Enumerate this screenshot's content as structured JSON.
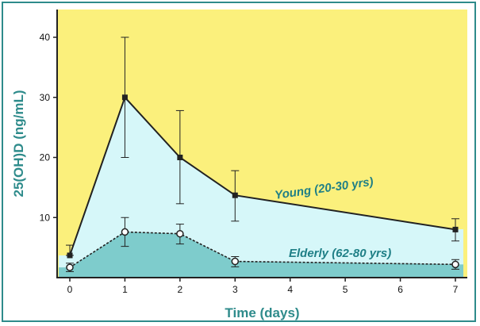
{
  "colors": {
    "frame": "#2e8b8b",
    "background_fill": "#fbf07c",
    "young_fill": "#d6f7f9",
    "elderly_fill": "#7ecccc",
    "line": "#222222",
    "text_accent": "#1f7f86"
  },
  "chart_data": {
    "type": "line",
    "title": "",
    "xlabel": "Time (days)",
    "ylabel": "25(OH)D (ng/mL)",
    "xlim": [
      0,
      7
    ],
    "ylim": [
      0,
      42
    ],
    "xticks": [
      0,
      1,
      2,
      3,
      4,
      5,
      6,
      7
    ],
    "yticks": [
      10,
      20,
      30,
      40
    ],
    "grid": false,
    "series": [
      {
        "name": "Young (20-30 yrs)",
        "line_style": "solid",
        "marker": "filled-square",
        "x": [
          0,
          1,
          2,
          3,
          7
        ],
        "y": [
          3.7,
          30.0,
          20.0,
          13.7,
          8.0
        ],
        "err_low": [
          3.7,
          20.0,
          12.3,
          9.4,
          6.1
        ],
        "err_high": [
          5.4,
          40.0,
          27.8,
          17.8,
          9.8
        ]
      },
      {
        "name": "Elderly (62-80 yrs)",
        "line_style": "dashed",
        "marker": "open-circle",
        "x": [
          0,
          1,
          2,
          3,
          7
        ],
        "y": [
          1.7,
          7.6,
          7.3,
          2.7,
          2.2
        ],
        "err_low": [
          1.0,
          5.2,
          5.6,
          1.8,
          1.4
        ],
        "err_high": [
          2.4,
          10.0,
          8.9,
          3.5,
          3.0
        ]
      }
    ]
  }
}
